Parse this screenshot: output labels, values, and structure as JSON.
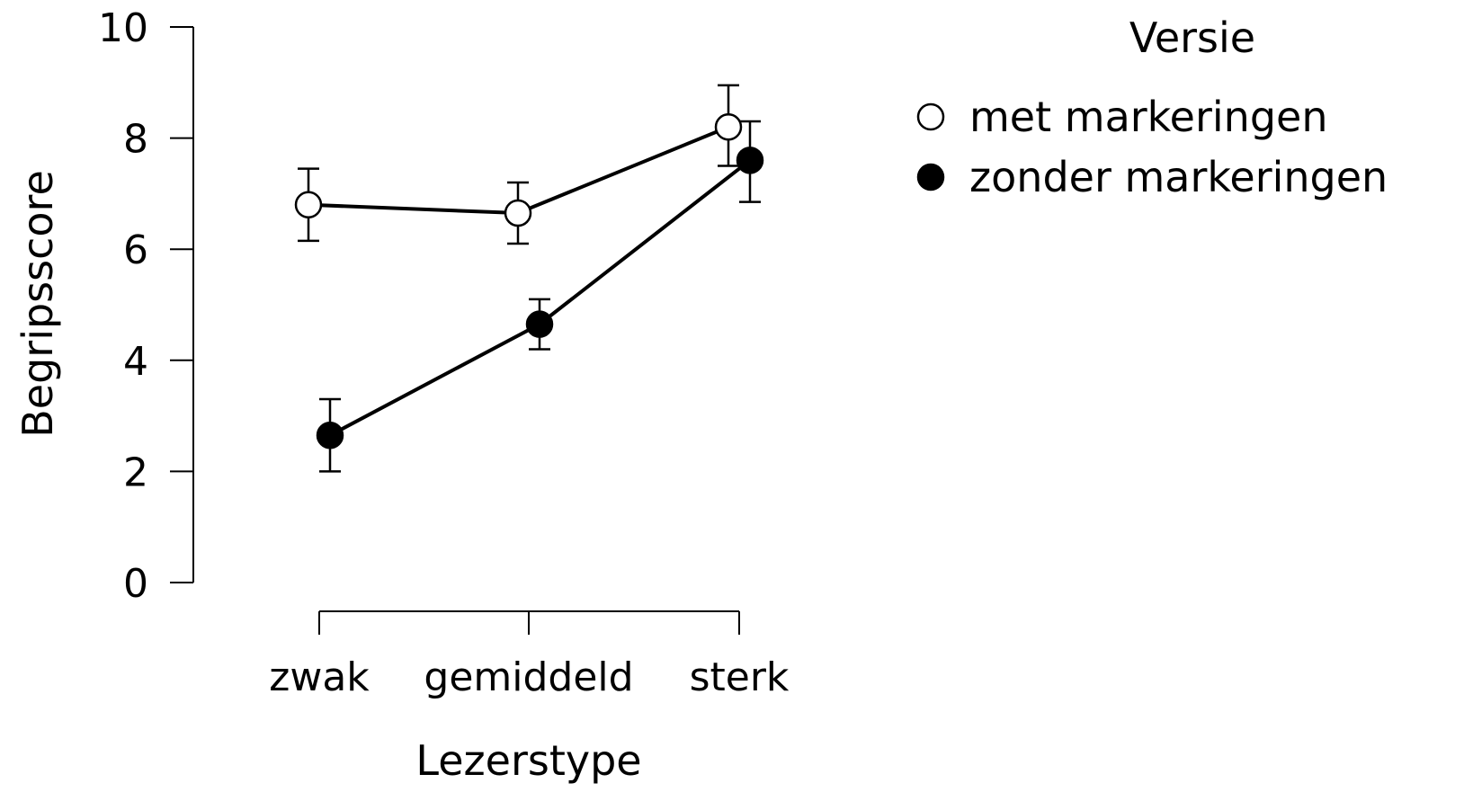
{
  "chart_data": {
    "type": "line",
    "categories": [
      "zwak",
      "gemiddeld",
      "sterk"
    ],
    "xlabel": "Lezerstype",
    "ylabel": "Begripsscore",
    "ylim": [
      0,
      10
    ],
    "yticks": [
      0,
      2,
      4,
      6,
      8,
      10
    ],
    "grid": false,
    "legend": {
      "title": "Versie",
      "placement": "top-right"
    },
    "series": [
      {
        "name": "met markeringen",
        "marker": "open-circle",
        "fill": "#ffffff",
        "values": [
          6.8,
          6.65,
          8.2
        ],
        "err_low": [
          6.15,
          6.1,
          7.5
        ],
        "err_high": [
          7.45,
          7.2,
          8.95
        ]
      },
      {
        "name": "zonder markeringen",
        "marker": "filled-circle",
        "fill": "#000000",
        "values": [
          2.65,
          4.65,
          7.6
        ],
        "err_low": [
          2.0,
          4.2,
          6.85
        ],
        "err_high": [
          3.3,
          5.1,
          8.3
        ]
      }
    ]
  }
}
